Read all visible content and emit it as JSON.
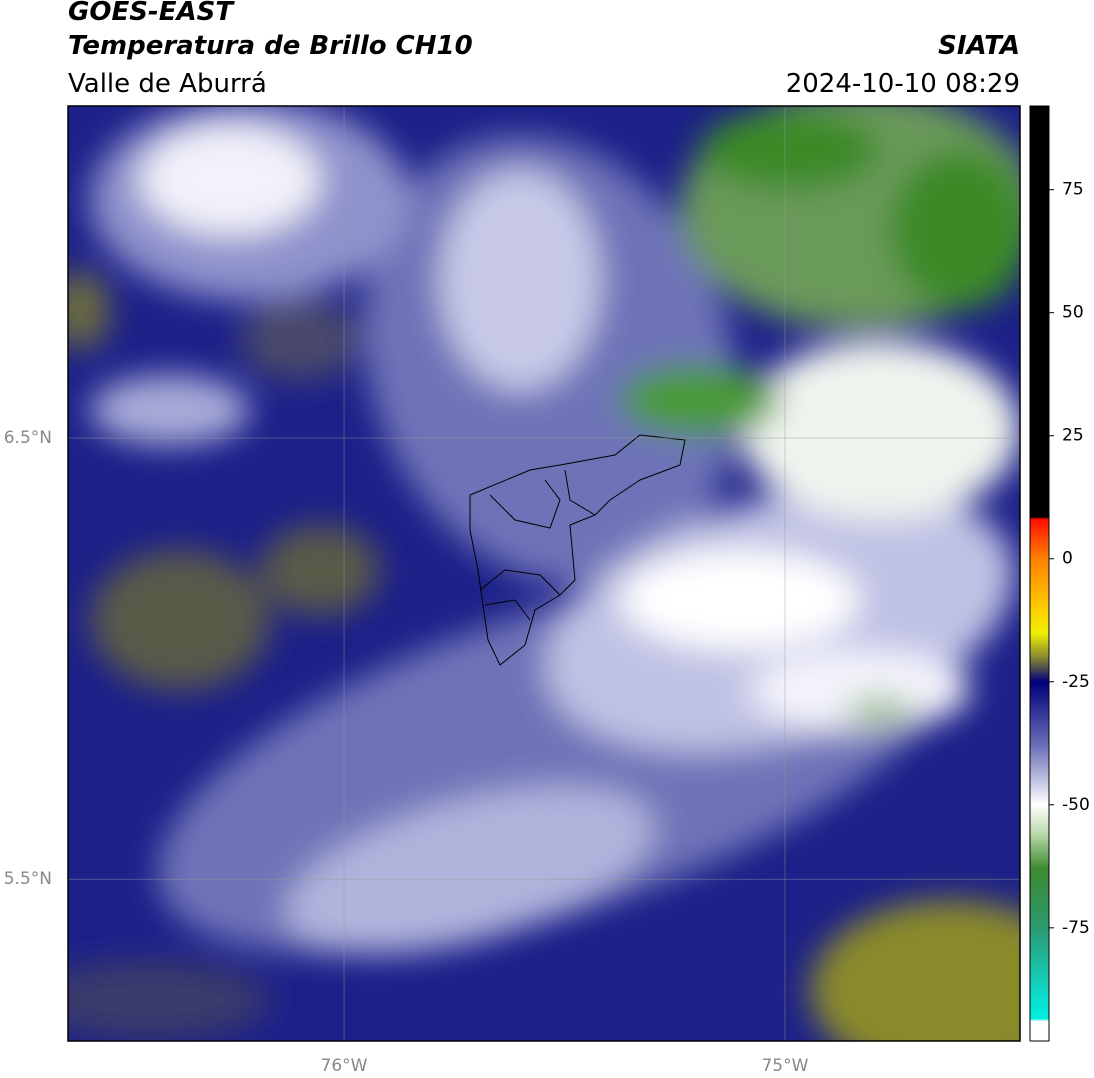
{
  "header": {
    "title": "GOES-EAST",
    "subtitle": "Temperatura de Brillo CH10",
    "source": "SIATA",
    "region": "Valle de Aburrá",
    "timestamp": "2024-10-10 08:29"
  },
  "map": {
    "lonlim": [
      -76.626,
      -74.467
    ],
    "latlim": [
      5.133,
      7.253
    ],
    "lonticks": [
      {
        "value": -76,
        "label": "76°W"
      },
      {
        "value": -75,
        "label": "75°W"
      }
    ],
    "latticks": [
      {
        "value": 6.5,
        "label": "6.5°N"
      },
      {
        "value": 5.5,
        "label": "5.5°N"
      }
    ],
    "grid": true
  },
  "colorbar": {
    "lim": [
      -98,
      92
    ],
    "ticks": [
      75,
      50,
      25,
      0,
      -25,
      -50,
      -75
    ],
    "stops": [
      {
        "value": 92,
        "color": "#000000"
      },
      {
        "value": 8.5,
        "color": "#000000"
      },
      {
        "value": 8,
        "color": "#ff1000"
      },
      {
        "value": 0,
        "color": "#ff8000"
      },
      {
        "value": -10,
        "color": "#ffcc00"
      },
      {
        "value": -15,
        "color": "#f0f000"
      },
      {
        "value": -20,
        "color": "#8a8a30"
      },
      {
        "value": -25,
        "color": "#00007a"
      },
      {
        "value": -38,
        "color": "#6a6eb8"
      },
      {
        "value": -50,
        "color": "#ffffff"
      },
      {
        "value": -56,
        "color": "#b8d8a8"
      },
      {
        "value": -63,
        "color": "#3d8a30"
      },
      {
        "value": -75,
        "color": "#2a9a70"
      },
      {
        "value": -88,
        "color": "#10d8c8"
      },
      {
        "value": -93.5,
        "color": "#00f0e0"
      },
      {
        "value": -94,
        "color": "#ffffff"
      },
      {
        "value": -98,
        "color": "#ffffff"
      }
    ]
  }
}
